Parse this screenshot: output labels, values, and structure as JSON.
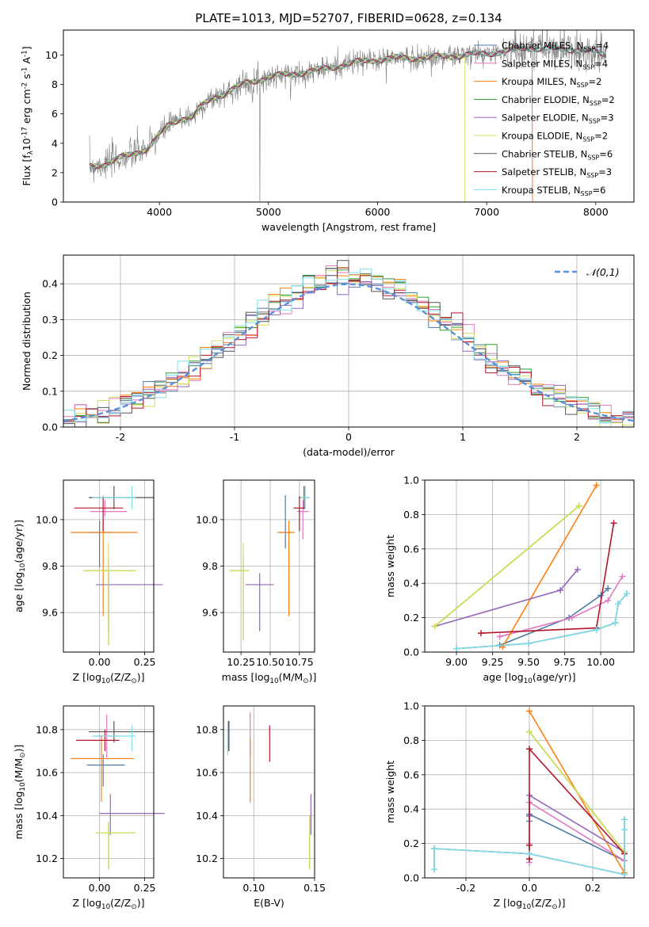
{
  "page_title": "PLATE=1013, MJD=52707, FIBERID=0628, z=0.134",
  "colors": {
    "Chabrier MILES": "#4e79a7",
    "Salpeter MILES": "#e377c2",
    "Kroupa MILES": "#ff7f0e",
    "Chabrier ELODIE": "#2ca02c",
    "Salpeter ELODIE": "#9467bd",
    "Kroupa ELODIE": "#d4e157",
    "Chabrier STELIB": "#555555",
    "Salpeter STELIB": "#b2182b",
    "Kroupa STELIB": "#80deea",
    "data": "#808080",
    "gauss": "#5b8fd9",
    "Salpeter MILES age": "#e377c2"
  },
  "chart_data": [
    {
      "id": "spectrum",
      "type": "line",
      "title": "PLATE=1013, MJD=52707, FIBERID=0628, z=0.134",
      "xlabel": "wavelength [Angstrom, rest frame]",
      "ylabel": "Flux [f$_\\lambda$10$^{-17}$ erg cm$^{-2}$ s$^{-1}$ A$^{-1}$]",
      "xlim": [
        3120,
        8350
      ],
      "ylim": [
        0,
        11.7
      ],
      "xticks": [
        4000,
        5000,
        6000,
        7000,
        8000
      ],
      "yticks": [
        0,
        2,
        4,
        6,
        8,
        10
      ],
      "grid": false,
      "legend_position": "top-right",
      "legend": [
        {
          "label": "Chabrier MILES, N",
          "sub": "SSP",
          "tail": "=4",
          "key": "Chabrier MILES"
        },
        {
          "label": "Salpeter MILES, N",
          "sub": "SSP",
          "tail": "=4",
          "key": "Salpeter MILES"
        },
        {
          "label": "Kroupa MILES, N",
          "sub": "SSP",
          "tail": "=2",
          "key": "Kroupa MILES"
        },
        {
          "label": "Chabrier ELODIE, N",
          "sub": "SSP",
          "tail": "=2",
          "key": "Chabrier ELODIE"
        },
        {
          "label": "Salpeter ELODIE, N",
          "sub": "SSP",
          "tail": "=3",
          "key": "Salpeter ELODIE"
        },
        {
          "label": "Kroupa ELODIE, N",
          "sub": "SSP",
          "tail": "=2",
          "key": "Kroupa ELODIE"
        },
        {
          "label": "Chabrier STELIB, N",
          "sub": "SSP",
          "tail": "=6",
          "key": "Chabrier STELIB"
        },
        {
          "label": "Salpeter STELIB, N",
          "sub": "SSP",
          "tail": "=3",
          "key": "Salpeter STELIB"
        },
        {
          "label": "Kroupa STELIB, N",
          "sub": "SSP",
          "tail": "=6",
          "key": "Kroupa STELIB"
        }
      ],
      "continuum": {
        "x": [
          3360,
          3500,
          3600,
          3700,
          3800,
          3900,
          4000,
          4100,
          4200,
          4300,
          4400,
          4500,
          4600,
          4700,
          4800,
          4900,
          5000,
          5200,
          5400,
          5600,
          5800,
          6000,
          6200,
          6400,
          6600,
          6800,
          7000,
          7200,
          7400,
          7600,
          7800,
          8000,
          8100
        ],
        "y": [
          2.4,
          2.6,
          2.9,
          3.1,
          3.4,
          3.7,
          4.6,
          5.3,
          5.7,
          5.8,
          6.6,
          7.1,
          7.4,
          7.8,
          8.1,
          8.3,
          8.5,
          8.7,
          8.9,
          9.2,
          9.5,
          9.7,
          9.8,
          9.8,
          9.9,
          10.0,
          10.1,
          10.3,
          10.5,
          10.4,
          10.4,
          10.2,
          10.0
        ]
      },
      "model_cutoffs": [
        {
          "key": "Kroupa ELODIE",
          "x": 6800
        },
        {
          "key": "Kroupa MILES",
          "x": 7420
        },
        {
          "key": "Salpeter MILES",
          "x": 7420
        }
      ]
    },
    {
      "id": "residual-histogram",
      "type": "bar",
      "xlabel": "(data-model)/error",
      "ylabel": "Normed distribution",
      "xlim": [
        -2.5,
        2.5
      ],
      "ylim": [
        0,
        0.48
      ],
      "xticks": [
        -2,
        -1,
        0,
        1,
        2
      ],
      "yticks": [
        0.0,
        0.1,
        0.2,
        0.3,
        0.4
      ],
      "grid": true,
      "legend_position": "top-right",
      "legend": [
        {
          "label": "$\\mathcal{N}(0,1)$",
          "key": "gauss"
        }
      ],
      "bin_width": 0.1,
      "bin_start": -2.5
    },
    {
      "id": "age-vs-metallicity",
      "type": "scatter",
      "xlabel": "Z [log$_{10}$(Z/Z$_\\odot$)]",
      "ylabel": "age  [log$_{10}$($age/yr$)]",
      "xlim": [
        -0.2,
        0.3
      ],
      "ylim": [
        9.43,
        10.17
      ],
      "xticks": [
        0.0,
        0.25
      ],
      "yticks": [
        9.6,
        9.8,
        10.0
      ],
      "grid": true,
      "points": [
        {
          "key": "Chabrier MILES",
          "x": 0.0,
          "xerr": [
            0.07,
            0.07
          ],
          "y": 9.945,
          "yerr": [
            0.15,
            0.05
          ]
        },
        {
          "key": "Salpeter MILES",
          "x": 0.03,
          "xerr": [
            0.08,
            0.12
          ],
          "y": 10.035,
          "yerr": [
            0.02,
            0.05
          ]
        },
        {
          "key": "Kroupa MILES",
          "x": 0.02,
          "xerr": [
            0.18,
            0.19
          ],
          "y": 9.945,
          "yerr": [
            0.36,
            0.05
          ]
        },
        {
          "key": "Chabrier ELODIE",
          "x": 0.05,
          "xerr": [
            0.14,
            0.15
          ],
          "y": 9.78,
          "yerr": [
            0.32,
            0.05
          ]
        },
        {
          "key": "Salpeter ELODIE",
          "x": 0.05,
          "xerr": [
            0.07,
            0.3
          ],
          "y": 9.72,
          "yerr": [
            0.2,
            0.05
          ]
        },
        {
          "key": "Kroupa ELODIE",
          "x": 0.05,
          "xerr": [
            0.14,
            0.15
          ],
          "y": 9.78,
          "yerr": [
            0.32,
            0.12
          ]
        },
        {
          "key": "Chabrier STELIB",
          "x": 0.08,
          "xerr": [
            0.14,
            0.22
          ],
          "y": 10.095,
          "yerr": [
            0.05,
            0.05
          ]
        },
        {
          "key": "Salpeter STELIB",
          "x": 0.02,
          "xerr": [
            0.16,
            0.11
          ],
          "y": 10.05,
          "yerr": [
            0.1,
            0.05
          ]
        },
        {
          "key": "Kroupa STELIB",
          "x": 0.18,
          "xerr": [
            0.22,
            0.02
          ],
          "y": 10.095,
          "yerr": [
            0.05,
            0.05
          ]
        }
      ]
    },
    {
      "id": "age-vs-mass",
      "type": "scatter",
      "xlabel": "mass [log$_{10}$(M/M$_\\odot$)]",
      "ylabel": "",
      "xlim": [
        10.1,
        10.88
      ],
      "ylim": [
        9.43,
        10.17
      ],
      "xticks": [
        10.25,
        10.5,
        10.75
      ],
      "yticks": [
        9.6,
        9.8,
        10.0
      ],
      "grid": true,
      "points": [
        {
          "key": "Chabrier MILES",
          "x": 10.63,
          "xerr": [
            0.05,
            0.05
          ],
          "y": 9.945,
          "yerr": [
            0.07,
            0.16
          ]
        },
        {
          "key": "Salpeter MILES",
          "x": 10.78,
          "xerr": [
            0.05,
            0.05
          ],
          "y": 10.035,
          "yerr": [
            0.12,
            0.05
          ]
        },
        {
          "key": "Kroupa MILES",
          "x": 10.66,
          "xerr": [
            0.1,
            0.05
          ],
          "y": 9.945,
          "yerr": [
            0.36,
            0.05
          ]
        },
        {
          "key": "Chabrier ELODIE",
          "x": 10.27,
          "xerr": [
            0.12,
            0.05
          ],
          "y": 9.78,
          "yerr": [
            0.3,
            0.05
          ]
        },
        {
          "key": "Salpeter ELODIE",
          "x": 10.41,
          "xerr": [
            0.12,
            0.12
          ],
          "y": 9.72,
          "yerr": [
            0.2,
            0.05
          ]
        },
        {
          "key": "Kroupa ELODIE",
          "x": 10.27,
          "xerr": [
            0.12,
            0.05
          ],
          "y": 9.78,
          "yerr": [
            0.3,
            0.12
          ]
        },
        {
          "key": "Chabrier STELIB",
          "x": 10.79,
          "xerr": [
            0.04,
            0.04
          ],
          "y": 10.095,
          "yerr": [
            0.05,
            0.05
          ]
        },
        {
          "key": "Salpeter STELIB",
          "x": 10.75,
          "xerr": [
            0.05,
            0.05
          ],
          "y": 10.05,
          "yerr": [
            0.1,
            0.05
          ]
        },
        {
          "key": "Kroupa STELIB",
          "x": 10.8,
          "xerr": [
            0.04,
            0.04
          ],
          "y": 10.095,
          "yerr": [
            0.05,
            0.05
          ]
        }
      ]
    },
    {
      "id": "mass-weight-vs-age",
      "type": "line",
      "xlabel": "age  [log$_{10}$($age/yr$)]",
      "ylabel": "mass weight",
      "xlim": [
        8.78,
        10.23
      ],
      "ylim": [
        0,
        1.0
      ],
      "xticks": [
        9.0,
        9.25,
        9.5,
        9.75,
        10.0
      ],
      "yticks": [
        0.0,
        0.2,
        0.4,
        0.6,
        0.8,
        1.0
      ],
      "grid": true,
      "series": [
        {
          "key": "Chabrier MILES",
          "x": [
            9.3,
            9.78,
            10.0,
            10.05
          ],
          "y": [
            0.04,
            0.2,
            0.33,
            0.37
          ]
        },
        {
          "key": "Salpeter MILES",
          "x": [
            9.3,
            9.8,
            10.05,
            10.15
          ],
          "y": [
            0.09,
            0.2,
            0.3,
            0.44
          ]
        },
        {
          "key": "Kroupa MILES",
          "x": [
            9.32,
            9.97
          ],
          "y": [
            0.03,
            0.97
          ]
        },
        {
          "key": "Chabrier ELODIE",
          "x": [
            8.85,
            9.85
          ],
          "y": [
            0.15,
            0.85
          ]
        },
        {
          "key": "Salpeter ELODIE",
          "x": [
            8.85,
            9.72,
            9.84
          ],
          "y": [
            0.15,
            0.36,
            0.48
          ]
        },
        {
          "key": "Kroupa ELODIE",
          "x": [
            8.85,
            9.85
          ],
          "y": [
            0.15,
            0.85
          ]
        },
        {
          "key": "Chabrier STELIB",
          "x": [
            9.0,
            9.5,
            9.97,
            10.1,
            10.12,
            10.18
          ],
          "y": [
            0.02,
            0.05,
            0.13,
            0.17,
            0.28,
            0.34
          ]
        },
        {
          "key": "Salpeter STELIB",
          "x": [
            9.17,
            9.97,
            10.09
          ],
          "y": [
            0.11,
            0.14,
            0.75
          ]
        },
        {
          "key": "Kroupa STELIB",
          "x": [
            9.0,
            9.5,
            9.97,
            10.1,
            10.12,
            10.18
          ],
          "y": [
            0.02,
            0.05,
            0.13,
            0.17,
            0.28,
            0.34
          ]
        }
      ]
    },
    {
      "id": "mass-vs-metallicity",
      "type": "scatter",
      "xlabel": "Z [log$_{10}$(Z/Z$_\\odot$)]",
      "ylabel": "mass [log$_{10}$(M/M$_\\odot$)]",
      "xlim": [
        -0.2,
        0.3
      ],
      "ylim": [
        10.11,
        10.91
      ],
      "xticks": [
        0.0,
        0.25
      ],
      "yticks": [
        10.2,
        10.4,
        10.6,
        10.8
      ],
      "grid": true,
      "points": [
        {
          "key": "Chabrier MILES",
          "x": 0.02,
          "xerr": [
            0.09,
            0.12
          ],
          "y": 10.635,
          "yerr": [
            0.1,
            0.05
          ]
        },
        {
          "key": "Salpeter MILES",
          "x": 0.04,
          "xerr": [
            0.06,
            0.06
          ],
          "y": 10.77,
          "yerr": [
            0.1,
            0.1
          ]
        },
        {
          "key": "Kroupa MILES",
          "x": 0.01,
          "xerr": [
            0.17,
            0.18
          ],
          "y": 10.665,
          "yerr": [
            0.2,
            0.11
          ]
        },
        {
          "key": "Chabrier ELODIE",
          "x": 0.05,
          "xerr": [
            0.07,
            0.15
          ],
          "y": 10.32,
          "yerr": [
            0.17,
            0.05
          ]
        },
        {
          "key": "Salpeter ELODIE",
          "x": 0.06,
          "xerr": [
            0.06,
            0.3
          ],
          "y": 10.41,
          "yerr": [
            0.1,
            0.09
          ]
        },
        {
          "key": "Kroupa ELODIE",
          "x": 0.05,
          "xerr": [
            0.07,
            0.15
          ],
          "y": 10.32,
          "yerr": [
            0.17,
            0.05
          ]
        },
        {
          "key": "Chabrier STELIB",
          "x": 0.08,
          "xerr": [
            0.14,
            0.22
          ],
          "y": 10.79,
          "yerr": [
            0.05,
            0.05
          ]
        },
        {
          "key": "Salpeter STELIB",
          "x": 0.03,
          "xerr": [
            0.16,
            0.08
          ],
          "y": 10.75,
          "yerr": [
            0.05,
            0.05
          ]
        },
        {
          "key": "Kroupa STELIB",
          "x": 0.18,
          "xerr": [
            0.22,
            0.02
          ],
          "y": 10.77,
          "yerr": [
            0.07,
            0.05
          ]
        }
      ]
    },
    {
      "id": "mass-vs-ebv",
      "type": "scatter",
      "xlabel": "E(B-V)",
      "ylabel": "",
      "xlim": [
        0.075,
        0.15
      ],
      "ylim": [
        10.11,
        10.91
      ],
      "xticks": [
        0.1,
        0.15
      ],
      "yticks": [
        10.2,
        10.4,
        10.6,
        10.8
      ],
      "grid": true,
      "points": [
        {
          "key": "Chabrier MILES",
          "x": 0.079,
          "xerr": [
            0,
            0
          ],
          "y": 10.77,
          "yerr": [
            0.07,
            0.07
          ]
        },
        {
          "key": "Salpeter MILES",
          "x": 0.097,
          "xerr": [
            0,
            0
          ],
          "y": 10.77,
          "yerr": [
            0.1,
            0.11
          ]
        },
        {
          "key": "Kroupa MILES",
          "x": 0.097,
          "xerr": [
            0,
            0
          ],
          "y": 10.62,
          "yerr": [
            0.16,
            0.14
          ]
        },
        {
          "key": "Chabrier ELODIE",
          "x": 0.146,
          "xerr": [
            0,
            0
          ],
          "y": 10.31,
          "yerr": [
            0.16,
            0.09
          ]
        },
        {
          "key": "Salpeter ELODIE",
          "x": 0.147,
          "xerr": [
            0,
            0
          ],
          "y": 10.41,
          "yerr": [
            0.1,
            0.09
          ]
        },
        {
          "key": "Kroupa ELODIE",
          "x": 0.146,
          "xerr": [
            0,
            0
          ],
          "y": 10.31,
          "yerr": [
            0.16,
            0.09
          ]
        },
        {
          "key": "Chabrier STELIB",
          "x": 0.0795,
          "xerr": [
            0,
            0
          ],
          "y": 10.78,
          "yerr": [
            0.08,
            0.06
          ]
        },
        {
          "key": "Salpeter STELIB",
          "x": 0.113,
          "xerr": [
            0,
            0
          ],
          "y": 10.74,
          "yerr": [
            0.09,
            0.08
          ]
        },
        {
          "key": "Kroupa STELIB",
          "x": 0.0785,
          "xerr": [
            0,
            0
          ],
          "y": 10.76,
          "yerr": [
            0.08,
            0.04
          ]
        }
      ]
    },
    {
      "id": "mass-weight-vs-metallicity",
      "type": "line",
      "xlabel": "Z [log$_{10}$(Z/Z$_\\odot$)]",
      "ylabel": "mass weight",
      "xlim": [
        -0.33,
        0.33
      ],
      "ylim": [
        0,
        1.0
      ],
      "xticks": [
        -0.2,
        0.0,
        0.2
      ],
      "yticks": [
        0.0,
        0.2,
        0.4,
        0.6,
        0.8,
        1.0
      ],
      "grid": true,
      "series": [
        {
          "key": "Chabrier MILES",
          "x": [
            0.0,
            0.0,
            0.3
          ],
          "y": [
            0.33,
            0.37,
            0.1
          ]
        },
        {
          "key": "Salpeter MILES",
          "x": [
            0.0,
            0.0,
            0.0,
            0.3
          ],
          "y": [
            0.09,
            0.2,
            0.44,
            0.1
          ]
        },
        {
          "key": "Kroupa MILES",
          "x": [
            0.0,
            0.3
          ],
          "y": [
            0.97,
            0.03
          ]
        },
        {
          "key": "Chabrier ELODIE",
          "x": [
            0.0,
            0.3
          ],
          "y": [
            0.85,
            0.15
          ]
        },
        {
          "key": "Salpeter ELODIE",
          "x": [
            0.0,
            0.0,
            0.3
          ],
          "y": [
            0.36,
            0.48,
            0.15
          ]
        },
        {
          "key": "Kroupa ELODIE",
          "x": [
            0.0,
            0.3
          ],
          "y": [
            0.85,
            0.15
          ]
        },
        {
          "key": "Chabrier STELIB",
          "x": [
            -0.3,
            -0.3,
            0.0,
            0.3,
            0.3,
            0.3
          ],
          "y": [
            0.05,
            0.17,
            0.14,
            0.02,
            0.28,
            0.34
          ]
        },
        {
          "key": "Salpeter STELIB",
          "x": [
            0.0,
            0.0,
            0.0,
            0.3
          ],
          "y": [
            0.11,
            0.19,
            0.75,
            0.14
          ]
        },
        {
          "key": "Kroupa STELIB",
          "x": [
            -0.3,
            -0.3,
            0.0,
            0.3,
            0.3,
            0.3
          ],
          "y": [
            0.05,
            0.17,
            0.14,
            0.02,
            0.28,
            0.34
          ]
        }
      ]
    }
  ]
}
